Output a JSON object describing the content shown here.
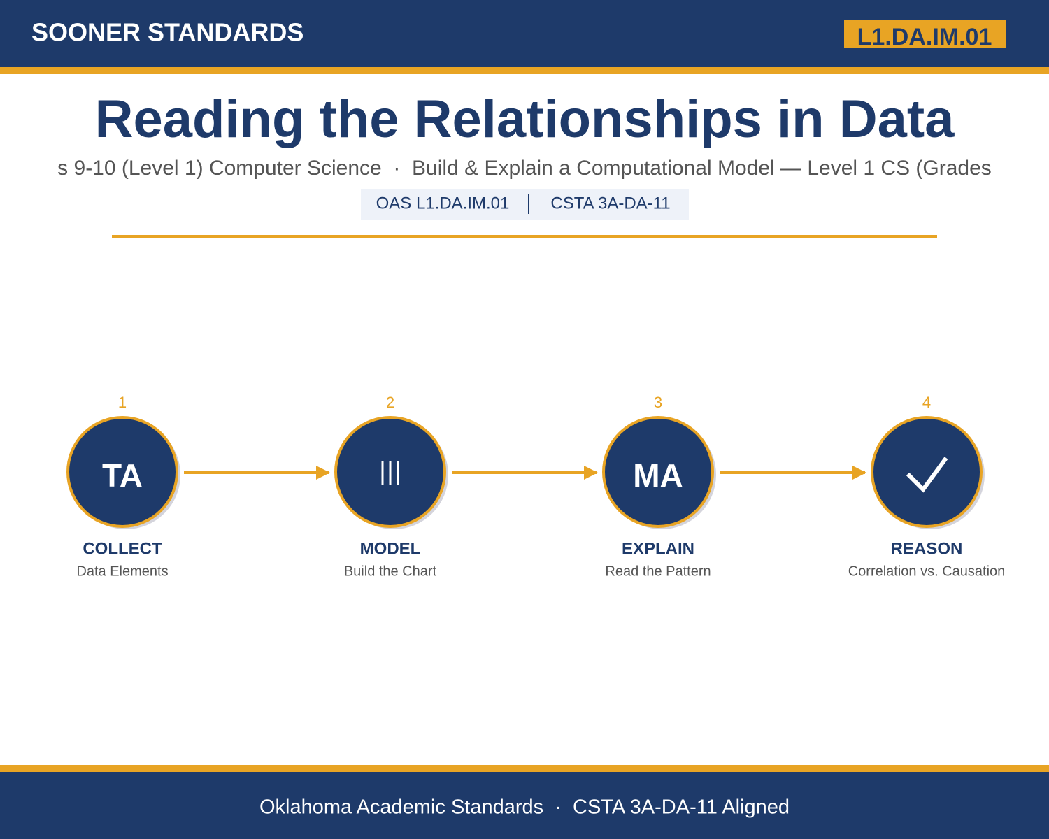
{
  "header": {
    "brand": "SOONER STANDARDS",
    "badge": "L1.DA.IM.01"
  },
  "title": "Reading the Relationships in Data",
  "subtitle": "s 9-10 (Level 1) Computer Science  ·  Build & Explain a Computational Model — Level 1 CS (Grades",
  "tags": [
    "OAS L1.DA.IM.01",
    "CSTA 3A-DA-11"
  ],
  "steps": [
    {
      "number": "1",
      "icon": "TA",
      "label": "COLLECT",
      "sublabel": "Data Elements"
    },
    {
      "number": "2",
      "label": "MODEL",
      "sublabel": "Build the Chart"
    },
    {
      "number": "3",
      "icon": "MA",
      "label": "EXPLAIN",
      "sublabel": "Read the Pattern"
    },
    {
      "number": "4",
      "label": "REASON",
      "sublabel": "Correlation vs. Causation"
    }
  ],
  "footer": "Oklahoma Academic Standards  ·  CSTA 3A-DA-11 Aligned"
}
